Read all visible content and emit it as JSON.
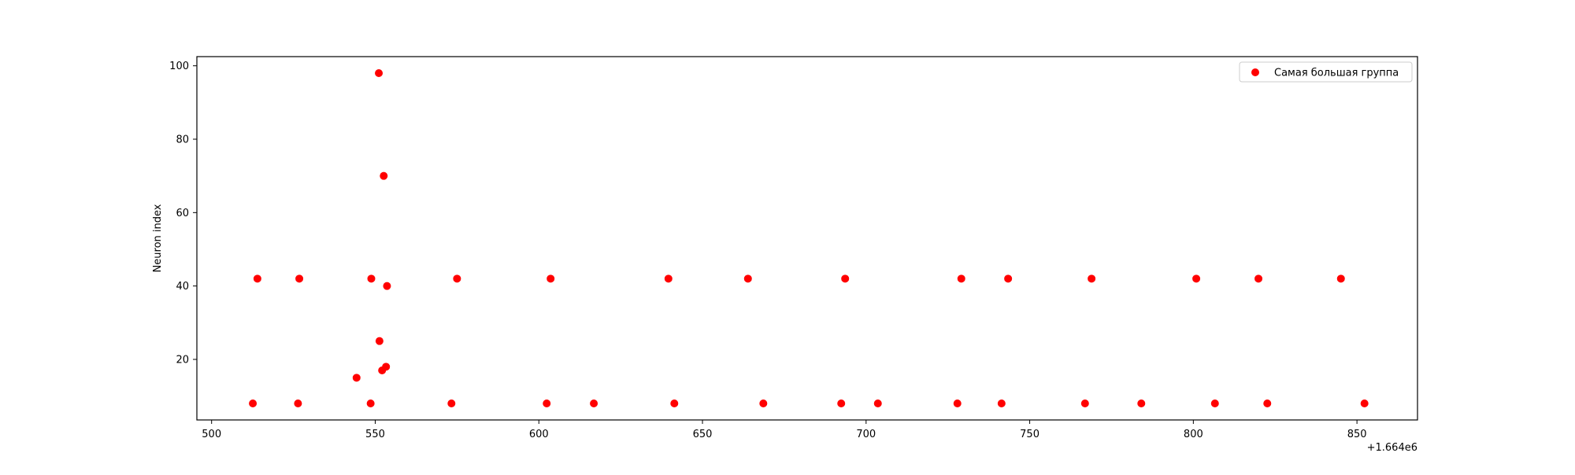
{
  "chart_data": {
    "type": "scatter",
    "title": "",
    "xlabel": "",
    "ylabel": "Neuron index",
    "x_offset_label": "+1.664e6",
    "xlim": [
      495.5,
      868.5
    ],
    "ylim": [
      3.5,
      102.5
    ],
    "xticks": [
      500,
      550,
      600,
      650,
      700,
      750,
      800,
      850
    ],
    "xtick_labels": [
      "500",
      "550",
      "600",
      "650",
      "700",
      "750",
      "800",
      "850"
    ],
    "yticks": [
      20,
      40,
      60,
      80,
      100
    ],
    "ytick_labels": [
      "20",
      "40",
      "60",
      "80",
      "100"
    ],
    "grid": false,
    "legend_position": "top-right",
    "series": [
      {
        "name": "Самая большая группа",
        "color": "#ff0000",
        "points": [
          [
            512.6,
            8
          ],
          [
            514.0,
            42
          ],
          [
            526.4,
            8
          ],
          [
            526.8,
            42
          ],
          [
            544.3,
            15
          ],
          [
            548.6,
            8
          ],
          [
            548.8,
            42
          ],
          [
            551.1,
            98
          ],
          [
            551.3,
            25
          ],
          [
            552.1,
            17
          ],
          [
            552.6,
            70
          ],
          [
            553.3,
            18
          ],
          [
            553.6,
            40
          ],
          [
            573.3,
            8
          ],
          [
            575.0,
            42
          ],
          [
            602.4,
            8
          ],
          [
            603.6,
            42
          ],
          [
            616.8,
            8
          ],
          [
            639.6,
            42
          ],
          [
            641.4,
            8
          ],
          [
            663.9,
            42
          ],
          [
            668.6,
            8
          ],
          [
            692.4,
            8
          ],
          [
            693.6,
            42
          ],
          [
            703.6,
            8
          ],
          [
            727.9,
            8
          ],
          [
            729.1,
            42
          ],
          [
            741.4,
            8
          ],
          [
            743.4,
            42
          ],
          [
            766.9,
            8
          ],
          [
            768.9,
            42
          ],
          [
            784.1,
            8
          ],
          [
            800.9,
            42
          ],
          [
            806.6,
            8
          ],
          [
            819.9,
            42
          ],
          [
            822.6,
            8
          ],
          [
            845.1,
            42
          ],
          [
            852.3,
            8
          ]
        ]
      }
    ]
  }
}
